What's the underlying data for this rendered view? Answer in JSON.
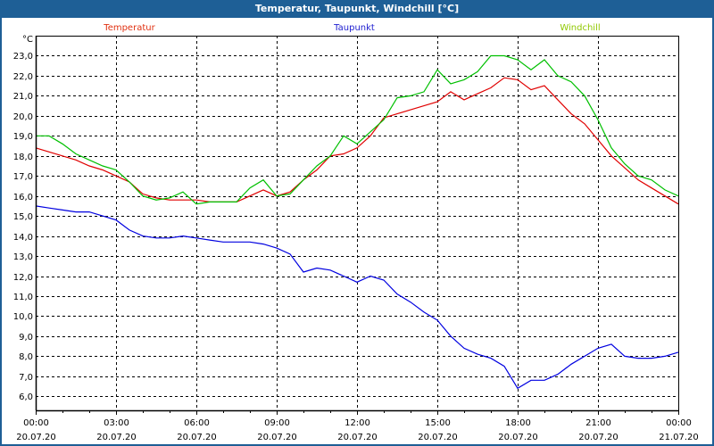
{
  "window": {
    "title": "Temperatur, Taupunkt, Windchill [°C]"
  },
  "chart_data": {
    "type": "line",
    "title": "Temperatur, Taupunkt, Windchill [°C]",
    "ylabel": "°C",
    "xlabel": "",
    "ylim": [
      5.3,
      24.0
    ],
    "xlim": [
      0,
      24
    ],
    "grid": true,
    "legend_placement": "top",
    "yticks": [
      6,
      7,
      8,
      9,
      10,
      11,
      12,
      13,
      14,
      15,
      16,
      17,
      18,
      19,
      20,
      21,
      22,
      23
    ],
    "ytick_labels": [
      "6,0",
      "7,0",
      "8,0",
      "9,0",
      "10,0",
      "11,0",
      "12,0",
      "13,0",
      "14,0",
      "15,0",
      "16,0",
      "17,0",
      "18,0",
      "19,0",
      "20,0",
      "21,0",
      "22,0",
      "23,0"
    ],
    "xticks": [
      0,
      3,
      6,
      9,
      12,
      15,
      18,
      21,
      24
    ],
    "xtick_times": [
      "00:00",
      "03:00",
      "06:00",
      "09:00",
      "12:00",
      "15:00",
      "18:00",
      "21:00",
      "00:00"
    ],
    "xtick_dates": [
      "20.07.20",
      "20.07.20",
      "20.07.20",
      "20.07.20",
      "20.07.20",
      "20.07.20",
      "20.07.20",
      "20.07.20",
      "21.07.20"
    ],
    "x": [
      0,
      0.5,
      1,
      1.5,
      2,
      2.5,
      3,
      3.5,
      4,
      4.5,
      5,
      5.5,
      6,
      6.5,
      7,
      7.5,
      8,
      8.5,
      9,
      9.5,
      10,
      10.5,
      11,
      11.5,
      12,
      12.5,
      13,
      13.5,
      14,
      14.5,
      15,
      15.5,
      16,
      16.5,
      17,
      17.5,
      18,
      18.5,
      19,
      19.5,
      20,
      20.5,
      21,
      21.5,
      22,
      22.5,
      23,
      23.5,
      24
    ],
    "series": [
      {
        "name": "Temperatur",
        "color": "#e00000",
        "legend_color": "#e03010",
        "values": [
          18.4,
          18.2,
          18.0,
          17.8,
          17.5,
          17.3,
          17.0,
          16.7,
          16.1,
          15.9,
          15.8,
          15.8,
          15.8,
          15.7,
          15.7,
          15.7,
          16.0,
          16.3,
          16.0,
          16.2,
          16.8,
          17.3,
          18.0,
          18.1,
          18.4,
          19.0,
          19.9,
          20.1,
          20.3,
          20.5,
          20.7,
          21.2,
          20.8,
          21.1,
          21.4,
          21.9,
          21.8,
          21.3,
          21.5,
          20.8,
          20.1,
          19.6,
          18.8,
          18.0,
          17.4,
          16.8,
          16.4,
          16.0,
          15.6
        ]
      },
      {
        "name": "Taupunkt",
        "color": "#0000e0",
        "legend_color": "#2020d0",
        "values": [
          15.5,
          15.4,
          15.3,
          15.2,
          15.2,
          15.0,
          14.8,
          14.3,
          14.0,
          13.9,
          13.9,
          14.0,
          13.9,
          13.8,
          13.7,
          13.7,
          13.7,
          13.6,
          13.4,
          13.1,
          12.2,
          12.4,
          12.3,
          12.0,
          11.7,
          12.0,
          11.8,
          11.1,
          10.7,
          10.2,
          9.8,
          9.0,
          8.4,
          8.1,
          7.9,
          7.5,
          6.4,
          6.8,
          6.8,
          7.1,
          7.6,
          8.0,
          8.4,
          8.6,
          8.0,
          7.9,
          7.9,
          8.0,
          8.2
        ]
      },
      {
        "name": "Windchill",
        "color": "#00c000",
        "legend_color": "#90c800",
        "values": [
          19.0,
          19.0,
          18.6,
          18.1,
          17.8,
          17.5,
          17.3,
          16.7,
          16.0,
          15.8,
          15.9,
          16.2,
          15.6,
          15.7,
          15.7,
          15.7,
          16.4,
          16.8,
          16.0,
          16.1,
          16.8,
          17.5,
          18.0,
          19.0,
          18.6,
          19.2,
          19.8,
          20.9,
          21.0,
          21.2,
          22.3,
          21.6,
          21.8,
          22.2,
          23.0,
          23.0,
          22.8,
          22.3,
          22.8,
          22.0,
          21.7,
          21.0,
          19.8,
          18.4,
          17.6,
          17.0,
          16.8,
          16.3,
          16.0
        ]
      }
    ]
  }
}
